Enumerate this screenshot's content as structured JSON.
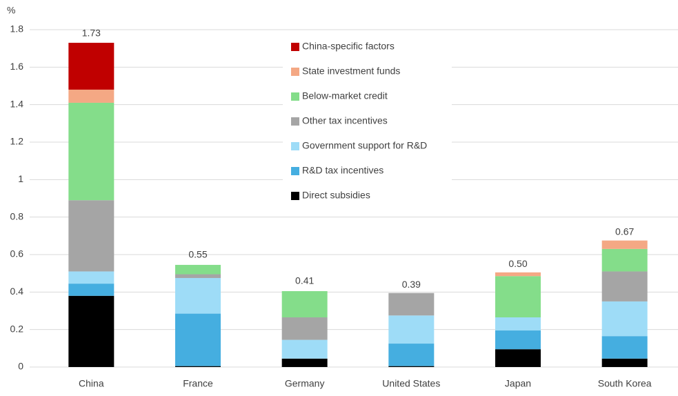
{
  "chart_data": {
    "type": "stacked_bar",
    "y_axis_label": "%",
    "categories": [
      "China",
      "France",
      "Germany",
      "United States",
      "Japan",
      "South Korea"
    ],
    "series": [
      {
        "name": "Direct subsidies",
        "color": "#000000",
        "values": [
          0.38,
          0.005,
          0.045,
          0.005,
          0.095,
          0.045
        ]
      },
      {
        "name": "R&D tax incentives",
        "color": "#45aee0",
        "values": [
          0.065,
          0.28,
          0,
          0.12,
          0.1,
          0.12
        ]
      },
      {
        "name": "Government support for R&D",
        "color": "#9edcf7",
        "values": [
          0.065,
          0.19,
          0.1,
          0.15,
          0.07,
          0.185
        ]
      },
      {
        "name": "Other tax incentives",
        "color": "#a5a5a5",
        "values": [
          0.38,
          0.02,
          0.12,
          0.12,
          0,
          0.16
        ]
      },
      {
        "name": "Below-market credit",
        "color": "#84dd8a",
        "values": [
          0.52,
          0.05,
          0.14,
          0,
          0.22,
          0.12
        ]
      },
      {
        "name": "State investment funds",
        "color": "#f4a884",
        "values": [
          0.07,
          0,
          0,
          0,
          0.02,
          0.045
        ]
      },
      {
        "name": "China-specific factors",
        "color": "#c00000",
        "values": [
          0.25,
          0,
          0,
          0,
          0,
          0
        ]
      }
    ],
    "totals": [
      1.73,
      0.55,
      0.41,
      0.39,
      0.5,
      0.67
    ],
    "total_labels": [
      "1.73",
      "0.55",
      "0.41",
      "0.39",
      "0.50",
      "0.67"
    ],
    "ylim": [
      0,
      1.8
    ],
    "yticks": [
      0,
      0.2,
      0.4,
      0.6,
      0.8,
      1,
      1.2,
      1.4,
      1.6,
      1.8
    ],
    "grid": true
  }
}
